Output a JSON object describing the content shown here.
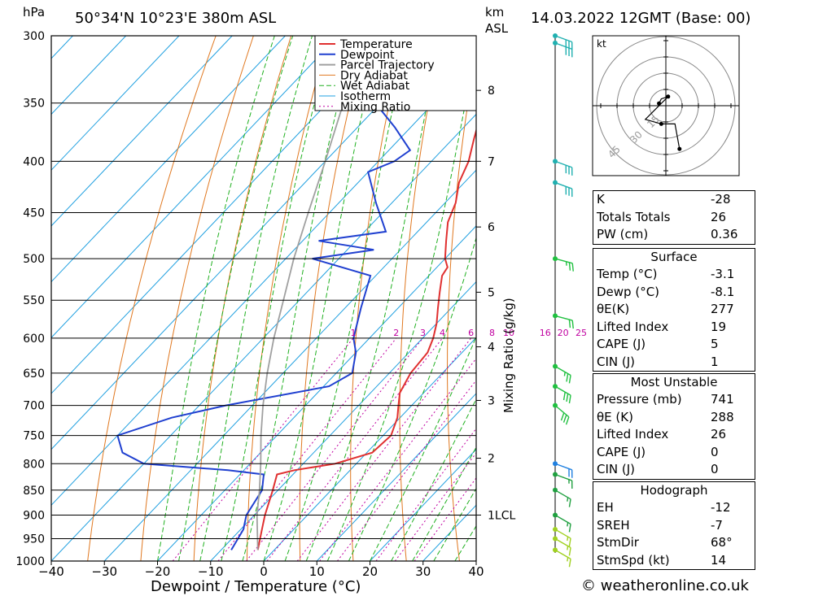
{
  "header": {
    "units_p": "hPa",
    "location": "50°34'N  10°23'E  380m  ASL",
    "units_km": "km",
    "units_asl": "ASL",
    "datetime": "14.03.2022  12GMT  (Base: 00)"
  },
  "footer": {
    "credit": "© weatheronline.co.uk"
  },
  "chart_data": {
    "type": "skewt",
    "xlabel": "Dewpoint / Temperature (°C)",
    "mixing_ratio_label": "Mixing Ratio (g/kg)",
    "x_ticks": [
      -40,
      -30,
      -20,
      -10,
      0,
      10,
      20,
      30,
      40
    ],
    "pressure_levels": [
      300,
      350,
      400,
      450,
      500,
      550,
      600,
      650,
      700,
      750,
      800,
      850,
      900,
      950,
      1000
    ],
    "km_ticks": [
      {
        "p": 340,
        "label": "8"
      },
      {
        "p": 400,
        "label": "7"
      },
      {
        "p": 465,
        "label": "6"
      },
      {
        "p": 540,
        "label": "5"
      },
      {
        "p": 612,
        "label": "4"
      },
      {
        "p": 692,
        "label": "3"
      },
      {
        "p": 790,
        "label": "2"
      },
      {
        "p": 900,
        "label": "1LCL"
      }
    ],
    "mixing_ratio_values": [
      "1",
      "2",
      "3",
      "4",
      "6",
      "8",
      "10",
      "16",
      "20",
      "25"
    ],
    "legend": [
      "Temperature",
      "Dewpoint",
      "Parcel Trajectory",
      "Dry Adiabat",
      "Wet Adiabat",
      "Isotherm",
      "Mixing Ratio"
    ],
    "colors": {
      "temperature": "#e03030",
      "dewpoint": "#2040d0",
      "parcel": "#a0a0a0",
      "dry_adiabat": "#e07820",
      "wet_adiabat": "#20b020",
      "isotherm": "#20a0e0",
      "mixing_ratio": "#c000a0"
    },
    "series": [
      {
        "name": "Temperature",
        "points": [
          [
            975,
            -3.1
          ],
          [
            930,
            -6
          ],
          [
            900,
            -8
          ],
          [
            850,
            -11
          ],
          [
            820,
            -13
          ],
          [
            812,
            -10.5
          ],
          [
            800,
            -4
          ],
          [
            780,
            1
          ],
          [
            750,
            1.5
          ],
          [
            720,
            -0.5
          ],
          [
            700,
            -2.5
          ],
          [
            680,
            -4.5
          ],
          [
            650,
            -6
          ],
          [
            620,
            -6.5
          ],
          [
            600,
            -8
          ],
          [
            580,
            -10
          ],
          [
            560,
            -12.5
          ],
          [
            540,
            -15
          ],
          [
            520,
            -17.5
          ],
          [
            510,
            -18
          ],
          [
            500,
            -20
          ],
          [
            480,
            -23
          ],
          [
            460,
            -26
          ],
          [
            440,
            -28
          ],
          [
            420,
            -31
          ],
          [
            400,
            -33
          ],
          [
            380,
            -36
          ],
          [
            360,
            -39
          ],
          [
            340,
            -42
          ],
          [
            320,
            -44
          ],
          [
            300,
            -47
          ]
        ]
      },
      {
        "name": "Dewpoint",
        "points": [
          [
            975,
            -8.1
          ],
          [
            930,
            -9.5
          ],
          [
            900,
            -11.5
          ],
          [
            850,
            -13
          ],
          [
            820,
            -15.5
          ],
          [
            812,
            -23
          ],
          [
            800,
            -40
          ],
          [
            780,
            -46
          ],
          [
            750,
            -50
          ],
          [
            720,
            -43
          ],
          [
            700,
            -35
          ],
          [
            670,
            -19
          ],
          [
            650,
            -17
          ],
          [
            620,
            -20
          ],
          [
            600,
            -23
          ],
          [
            560,
            -27
          ],
          [
            520,
            -31
          ],
          [
            500,
            -45
          ],
          [
            490,
            -35
          ],
          [
            480,
            -47
          ],
          [
            470,
            -36
          ],
          [
            440,
            -43
          ],
          [
            410,
            -50
          ],
          [
            400,
            -47
          ],
          [
            390,
            -46
          ],
          [
            370,
            -53
          ],
          [
            350,
            -61
          ],
          [
            330,
            -57
          ],
          [
            320,
            -54
          ],
          [
            310,
            -58
          ],
          [
            300,
            -55
          ]
        ]
      },
      {
        "name": "Parcel Trajectory",
        "points": [
          [
            975,
            -3.1
          ],
          [
            900,
            -9.5
          ],
          [
            850,
            -13.5
          ],
          [
            800,
            -18
          ],
          [
            750,
            -23
          ],
          [
            700,
            -28
          ],
          [
            650,
            -33
          ],
          [
            600,
            -38
          ],
          [
            550,
            -43
          ],
          [
            500,
            -48.5
          ],
          [
            450,
            -54
          ],
          [
            400,
            -60
          ],
          [
            350,
            -67
          ],
          [
            300,
            -74
          ]
        ]
      }
    ],
    "wind_barbs": [
      {
        "p": 300,
        "dir": 290,
        "kt": 30
      },
      {
        "p": 305,
        "dir": 290,
        "kt": 30
      },
      {
        "p": 400,
        "dir": 290,
        "kt": 30
      },
      {
        "p": 420,
        "dir": 290,
        "kt": 30
      },
      {
        "p": 500,
        "dir": 285,
        "kt": 25
      },
      {
        "p": 570,
        "dir": 285,
        "kt": 20
      },
      {
        "p": 640,
        "dir": 300,
        "kt": 25
      },
      {
        "p": 670,
        "dir": 300,
        "kt": 30
      },
      {
        "p": 700,
        "dir": 310,
        "kt": 30
      },
      {
        "p": 800,
        "dir": 290,
        "kt": 20
      },
      {
        "p": 820,
        "dir": 290,
        "kt": 15
      },
      {
        "p": 850,
        "dir": 300,
        "kt": 15
      },
      {
        "p": 900,
        "dir": 300,
        "kt": 15
      },
      {
        "p": 930,
        "dir": 300,
        "kt": 15
      },
      {
        "p": 950,
        "dir": 300,
        "kt": 15
      },
      {
        "p": 975,
        "dir": 300,
        "kt": 15
      }
    ],
    "hodograph": {
      "label": "kt",
      "ring_labels": [
        "15",
        "30",
        "45"
      ],
      "points": [
        [
          -3,
          1
        ],
        [
          -2,
          3
        ],
        [
          1,
          4
        ],
        [
          -9,
          -6
        ],
        [
          -2,
          -8
        ],
        [
          4,
          -8
        ],
        [
          6,
          -19
        ]
      ]
    }
  },
  "indices": {
    "general": [
      {
        "label": "K",
        "value": "-28"
      },
      {
        "label": "Totals Totals",
        "value": "26"
      },
      {
        "label": "PW (cm)",
        "value": "0.36"
      }
    ],
    "surface": {
      "title": "Surface",
      "rows": [
        {
          "label": "Temp (°C)",
          "value": "-3.1"
        },
        {
          "label": "Dewp (°C)",
          "value": "-8.1"
        },
        {
          "label": "θE(K)",
          "value": "277"
        },
        {
          "label": "Lifted Index",
          "value": "19"
        },
        {
          "label": "CAPE (J)",
          "value": "5"
        },
        {
          "label": "CIN (J)",
          "value": "1"
        }
      ]
    },
    "most_unstable": {
      "title": "Most Unstable",
      "rows": [
        {
          "label": "Pressure (mb)",
          "value": "741"
        },
        {
          "label": "θE (K)",
          "value": "288"
        },
        {
          "label": "Lifted Index",
          "value": "26"
        },
        {
          "label": "CAPE (J)",
          "value": "0"
        },
        {
          "label": "CIN (J)",
          "value": "0"
        }
      ]
    },
    "hodograph": {
      "title": "Hodograph",
      "rows": [
        {
          "label": "EH",
          "value": "-12"
        },
        {
          "label": "SREH",
          "value": "-7"
        },
        {
          "label": "StmDir",
          "value": "68°"
        },
        {
          "label": "StmSpd (kt)",
          "value": "14"
        }
      ]
    }
  }
}
